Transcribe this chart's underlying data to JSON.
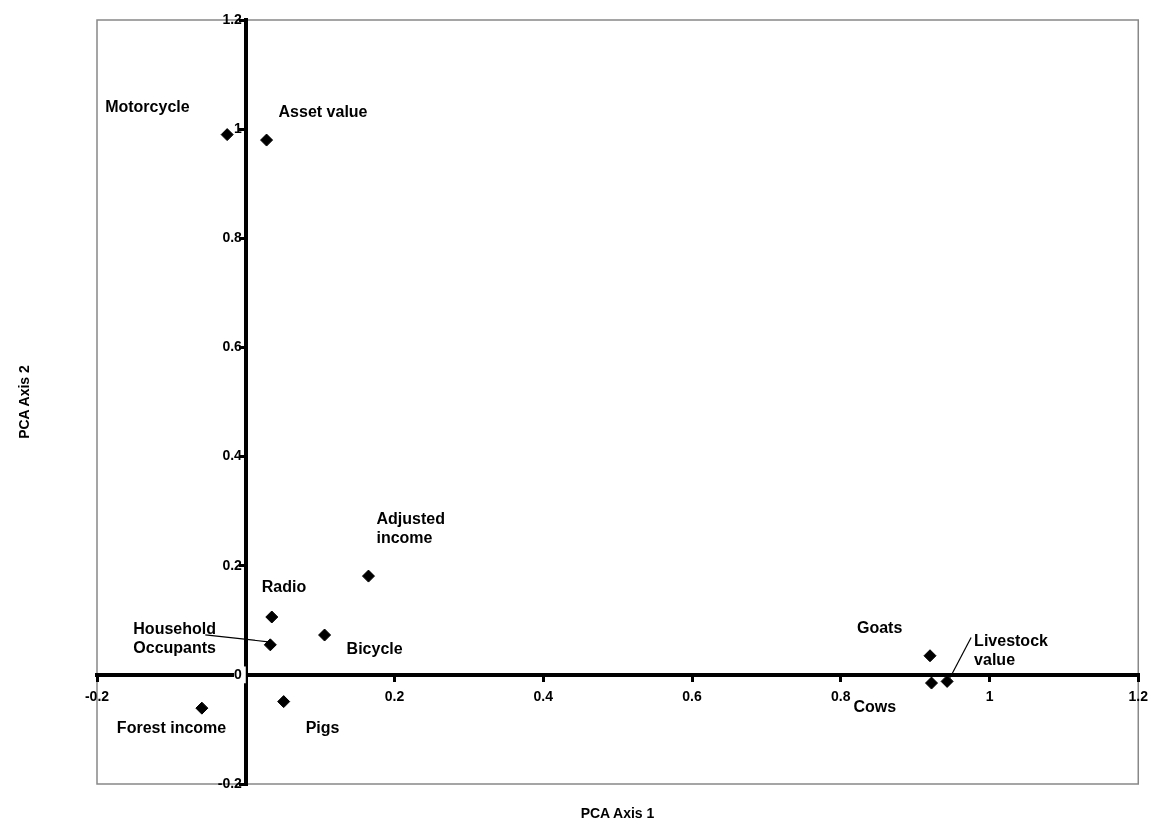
{
  "chart_data": {
    "type": "scatter",
    "xlabel": "PCA Axis 1",
    "ylabel": "PCA Axis 2",
    "series": [
      {
        "color": "#000000",
        "x": [
          -0.025,
          0.028,
          0.165,
          0.035,
          0.033,
          0.106,
          0.051,
          -0.059,
          0.92,
          0.922,
          0.943
        ],
        "values": [
          0.99,
          0.98,
          0.181,
          0.106,
          0.055,
          0.073,
          -0.049,
          -0.061,
          0.035,
          -0.015,
          -0.012
        ]
      }
    ],
    "marker": "diamond",
    "legend": false,
    "grid": false,
    "xlim": [
      -0.2,
      1.2
    ],
    "xticks": [
      -0.2,
      {
        "value": 0,
        "label": null
      },
      0.2,
      0.4,
      0.6,
      0.8,
      1,
      1.2
    ],
    "ylim": [
      -0.2,
      1.2
    ],
    "yticks": [
      -0.2,
      0,
      0.2,
      0.4,
      0.6,
      0.8,
      1,
      1.2
    ],
    "annotations": [
      {
        "text": "Motorcycle",
        "x": -0.025,
        "y": 0.99
      },
      {
        "text": "Asset value",
        "x": 0.028,
        "y": 0.98
      },
      {
        "text": "Adjusted income",
        "x": 0.165,
        "y": 0.181
      },
      {
        "text": "Radio",
        "x": 0.035,
        "y": 0.106
      },
      {
        "text": "Household Occupants",
        "x": 0.033,
        "y": 0.055
      },
      {
        "text": "Bicycle",
        "x": 0.106,
        "y": 0.073
      },
      {
        "text": "Pigs",
        "x": 0.051,
        "y": -0.049
      },
      {
        "text": "Forest income",
        "x": -0.059,
        "y": -0.061
      },
      {
        "text": "Goats",
        "x": 0.92,
        "y": 0.035
      },
      {
        "text": "Cows",
        "x": 0.922,
        "y": -0.015
      },
      {
        "text": "Livestock value",
        "x": 0.943,
        "y": -0.012
      }
    ]
  }
}
